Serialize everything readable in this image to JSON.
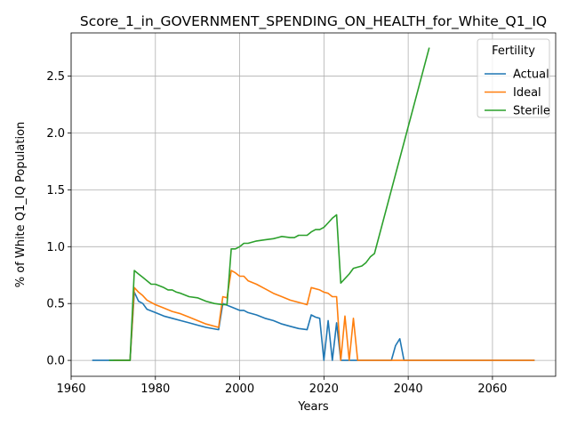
{
  "chart_data": {
    "type": "line",
    "title": "Score_1_in_GOVERNMENT_SPENDING_ON_HEALTH_for_White_Q1_IQ",
    "xlabel": "Years",
    "ylabel": "% of White Q1_IQ Population",
    "xlim": [
      1960,
      2075
    ],
    "ylim": [
      -0.14,
      2.88
    ],
    "xticks": [
      1960,
      1980,
      2000,
      2020,
      2040,
      2060
    ],
    "xtick_labels": [
      "1960",
      "1980",
      "2000",
      "2020",
      "2040",
      "2060"
    ],
    "yticks": [
      0.0,
      0.5,
      1.0,
      1.5,
      2.0,
      2.5
    ],
    "ytick_labels": [
      "0.0",
      "0.5",
      "1.0",
      "1.5",
      "2.0",
      "2.5"
    ],
    "grid": true,
    "legend": {
      "title": "Fertility",
      "position": "top-right"
    },
    "series": [
      {
        "name": "Actual",
        "color": "#1f77b4",
        "x": [
          1965,
          1970,
          1974,
          1975,
          1976,
          1977,
          1978,
          1980,
          1982,
          1984,
          1986,
          1988,
          1990,
          1992,
          1995,
          1996,
          1998,
          2000,
          2001,
          2002,
          2004,
          2006,
          2008,
          2010,
          2012,
          2014,
          2016,
          2017,
          2018,
          2019,
          2020,
          2021,
          2022,
          2023,
          2024,
          2025,
          2026,
          2027,
          2028,
          2036,
          2037,
          2038,
          2039,
          2040,
          2070
        ],
        "y": [
          0.0,
          0.0,
          0.0,
          0.6,
          0.52,
          0.5,
          0.45,
          0.42,
          0.39,
          0.37,
          0.35,
          0.33,
          0.31,
          0.29,
          0.27,
          0.5,
          0.47,
          0.44,
          0.44,
          0.42,
          0.4,
          0.37,
          0.35,
          0.32,
          0.3,
          0.28,
          0.27,
          0.4,
          0.38,
          0.37,
          0.0,
          0.35,
          0.0,
          0.33,
          0.0,
          0.0,
          0.0,
          0.0,
          0.0,
          0.0,
          0.13,
          0.19,
          0.0,
          0.0,
          0.0
        ]
      },
      {
        "name": "Ideal",
        "color": "#ff7f0e",
        "x": [
          1970,
          1974,
          1975,
          1976,
          1977,
          1978,
          1980,
          1982,
          1984,
          1986,
          1988,
          1990,
          1992,
          1995,
          1996,
          1997,
          1998,
          1999,
          2000,
          2001,
          2002,
          2004,
          2006,
          2008,
          2010,
          2012,
          2014,
          2016,
          2017,
          2019,
          2020,
          2021,
          2022,
          2023,
          2024,
          2025,
          2026,
          2027,
          2028,
          2040,
          2070
        ],
        "y": [
          0.0,
          0.0,
          0.64,
          0.6,
          0.57,
          0.53,
          0.49,
          0.46,
          0.43,
          0.41,
          0.38,
          0.35,
          0.32,
          0.29,
          0.56,
          0.55,
          0.79,
          0.77,
          0.74,
          0.74,
          0.7,
          0.67,
          0.63,
          0.59,
          0.56,
          0.53,
          0.51,
          0.49,
          0.64,
          0.62,
          0.6,
          0.59,
          0.56,
          0.56,
          0.0,
          0.39,
          0.0,
          0.37,
          0.0,
          0.0,
          0.0
        ]
      },
      {
        "name": "Sterile",
        "color": "#2ca02c",
        "x": [
          1969,
          1974,
          1975,
          1976,
          1977,
          1978,
          1979,
          1980,
          1982,
          1983,
          1984,
          1985,
          1986,
          1988,
          1990,
          1992,
          1994,
          1996,
          1997,
          1998,
          1999,
          2000,
          2001,
          2002,
          2004,
          2006,
          2008,
          2009,
          2010,
          2012,
          2013,
          2014,
          2015,
          2016,
          2017,
          2018,
          2019,
          2020,
          2021,
          2022,
          2023,
          2024,
          2026,
          2027,
          2029,
          2030,
          2031,
          2032,
          2045
        ],
        "y": [
          0.0,
          0.0,
          0.79,
          0.76,
          0.73,
          0.7,
          0.67,
          0.67,
          0.64,
          0.62,
          0.62,
          0.6,
          0.59,
          0.56,
          0.55,
          0.52,
          0.5,
          0.49,
          0.49,
          0.98,
          0.98,
          1.0,
          1.03,
          1.03,
          1.05,
          1.06,
          1.07,
          1.08,
          1.09,
          1.08,
          1.08,
          1.1,
          1.1,
          1.1,
          1.13,
          1.15,
          1.15,
          1.17,
          1.21,
          1.25,
          1.28,
          0.68,
          0.76,
          0.81,
          0.83,
          0.86,
          0.91,
          0.94,
          2.75
        ]
      }
    ]
  }
}
